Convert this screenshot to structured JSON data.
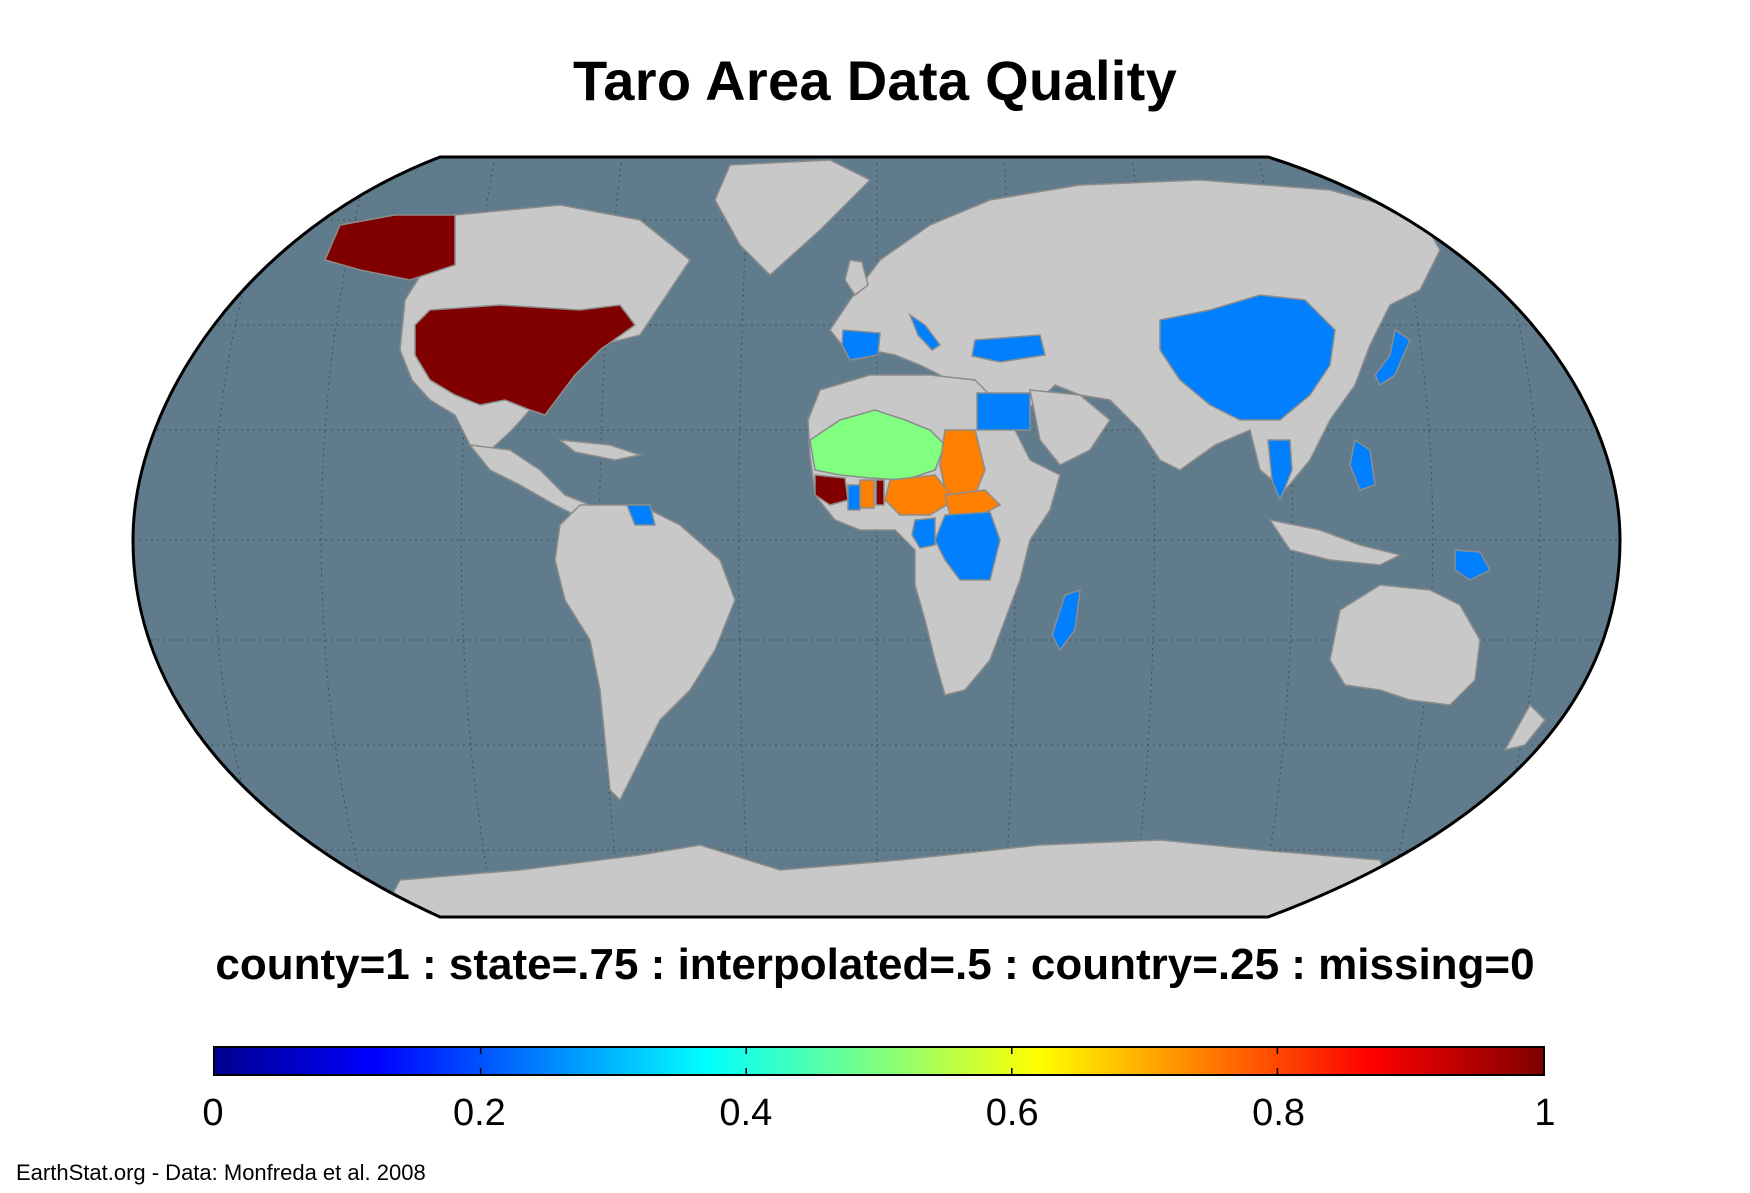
{
  "title": "Taro Area Data Quality",
  "legend": {
    "caption": "county=1 : state=.75 : interpolated=.5 : country=.25 : missing=0",
    "ticks": [
      "0",
      "0.2",
      "0.4",
      "0.6",
      "0.8",
      "1"
    ],
    "range": [
      0,
      1
    ],
    "colormap": "jet"
  },
  "credit": "EarthStat.org - Data: Monfreda et al. 2008",
  "colors": {
    "ocean": "#607b8b",
    "land": "#c8c8c8",
    "border": "#8c8c8c",
    "county": "#800000",
    "state": "#ff7f00",
    "interpolated": "#80ff80",
    "country": "#0080ff"
  },
  "map": {
    "projection": "Robinson",
    "regions": [
      {
        "name": "United States",
        "quality": "county"
      },
      {
        "name": "Alaska",
        "quality": "county"
      },
      {
        "name": "Mauritania",
        "quality": "interpolated"
      },
      {
        "name": "Mali",
        "quality": "interpolated"
      },
      {
        "name": "Niger",
        "quality": "interpolated"
      },
      {
        "name": "Senegal",
        "quality": "interpolated"
      },
      {
        "name": "Burkina Faso",
        "quality": "interpolated"
      },
      {
        "name": "Chad",
        "quality": "state"
      },
      {
        "name": "Nigeria",
        "quality": "state"
      },
      {
        "name": "Central African Republic",
        "quality": "state"
      },
      {
        "name": "Ghana",
        "quality": "state"
      },
      {
        "name": "Guinea",
        "quality": "county"
      },
      {
        "name": "Togo",
        "quality": "county"
      },
      {
        "name": "Democratic Republic of the Congo",
        "quality": "country"
      },
      {
        "name": "Cameroon",
        "quality": "country"
      },
      {
        "name": "Gabon",
        "quality": "country"
      },
      {
        "name": "Madagascar",
        "quality": "country"
      },
      {
        "name": "Egypt",
        "quality": "country"
      },
      {
        "name": "Spain",
        "quality": "country"
      },
      {
        "name": "Italy",
        "quality": "country"
      },
      {
        "name": "Turkey",
        "quality": "country"
      },
      {
        "name": "China",
        "quality": "country"
      },
      {
        "name": "Japan",
        "quality": "country"
      },
      {
        "name": "Thailand",
        "quality": "country"
      },
      {
        "name": "Philippines",
        "quality": "country"
      },
      {
        "name": "Papua New Guinea",
        "quality": "country"
      },
      {
        "name": "Suriname",
        "quality": "country"
      },
      {
        "name": "French Guiana",
        "quality": "country"
      }
    ]
  }
}
